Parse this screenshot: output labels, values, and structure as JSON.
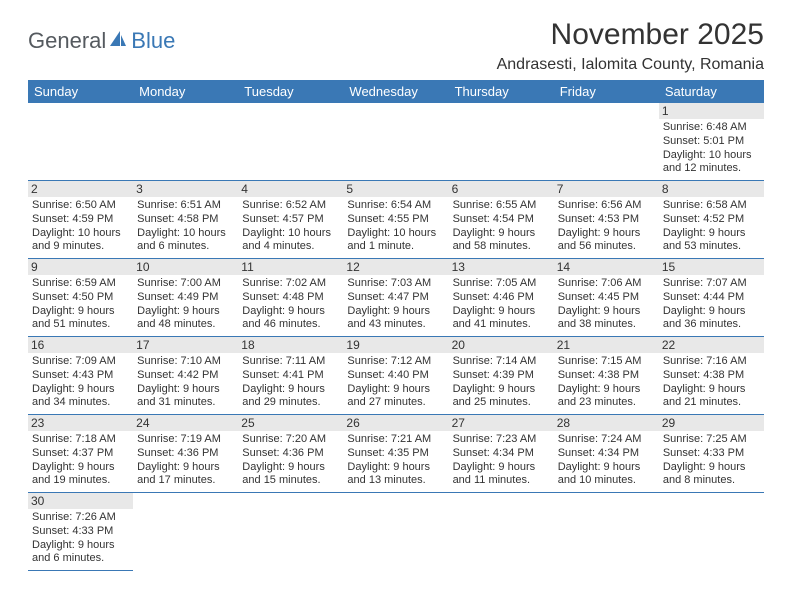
{
  "logo": {
    "general": "General",
    "blue": "Blue"
  },
  "title": "November 2025",
  "location": "Andrasesti, Ialomita County, Romania",
  "colors": {
    "header_bg": "#3a78b5",
    "header_text": "#ffffff",
    "text": "#333333",
    "daynum_bg": "#e8e8e8",
    "rule": "#3a78b5",
    "logo_gray": "#555a5f",
    "logo_blue": "#3a78b5",
    "background": "#ffffff"
  },
  "typography": {
    "title_fontsize": 30,
    "location_fontsize": 16,
    "weekday_fontsize": 13,
    "daynum_fontsize": 12,
    "body_fontsize": 11
  },
  "weekdays": [
    "Sunday",
    "Monday",
    "Tuesday",
    "Wednesday",
    "Thursday",
    "Friday",
    "Saturday"
  ],
  "weeks": [
    [
      null,
      null,
      null,
      null,
      null,
      null,
      {
        "n": "1",
        "sr": "Sunrise: 6:48 AM",
        "ss": "Sunset: 5:01 PM",
        "dl": "Daylight: 10 hours and 12 minutes."
      }
    ],
    [
      {
        "n": "2",
        "sr": "Sunrise: 6:50 AM",
        "ss": "Sunset: 4:59 PM",
        "dl": "Daylight: 10 hours and 9 minutes."
      },
      {
        "n": "3",
        "sr": "Sunrise: 6:51 AM",
        "ss": "Sunset: 4:58 PM",
        "dl": "Daylight: 10 hours and 6 minutes."
      },
      {
        "n": "4",
        "sr": "Sunrise: 6:52 AM",
        "ss": "Sunset: 4:57 PM",
        "dl": "Daylight: 10 hours and 4 minutes."
      },
      {
        "n": "5",
        "sr": "Sunrise: 6:54 AM",
        "ss": "Sunset: 4:55 PM",
        "dl": "Daylight: 10 hours and 1 minute."
      },
      {
        "n": "6",
        "sr": "Sunrise: 6:55 AM",
        "ss": "Sunset: 4:54 PM",
        "dl": "Daylight: 9 hours and 58 minutes."
      },
      {
        "n": "7",
        "sr": "Sunrise: 6:56 AM",
        "ss": "Sunset: 4:53 PM",
        "dl": "Daylight: 9 hours and 56 minutes."
      },
      {
        "n": "8",
        "sr": "Sunrise: 6:58 AM",
        "ss": "Sunset: 4:52 PM",
        "dl": "Daylight: 9 hours and 53 minutes."
      }
    ],
    [
      {
        "n": "9",
        "sr": "Sunrise: 6:59 AM",
        "ss": "Sunset: 4:50 PM",
        "dl": "Daylight: 9 hours and 51 minutes."
      },
      {
        "n": "10",
        "sr": "Sunrise: 7:00 AM",
        "ss": "Sunset: 4:49 PM",
        "dl": "Daylight: 9 hours and 48 minutes."
      },
      {
        "n": "11",
        "sr": "Sunrise: 7:02 AM",
        "ss": "Sunset: 4:48 PM",
        "dl": "Daylight: 9 hours and 46 minutes."
      },
      {
        "n": "12",
        "sr": "Sunrise: 7:03 AM",
        "ss": "Sunset: 4:47 PM",
        "dl": "Daylight: 9 hours and 43 minutes."
      },
      {
        "n": "13",
        "sr": "Sunrise: 7:05 AM",
        "ss": "Sunset: 4:46 PM",
        "dl": "Daylight: 9 hours and 41 minutes."
      },
      {
        "n": "14",
        "sr": "Sunrise: 7:06 AM",
        "ss": "Sunset: 4:45 PM",
        "dl": "Daylight: 9 hours and 38 minutes."
      },
      {
        "n": "15",
        "sr": "Sunrise: 7:07 AM",
        "ss": "Sunset: 4:44 PM",
        "dl": "Daylight: 9 hours and 36 minutes."
      }
    ],
    [
      {
        "n": "16",
        "sr": "Sunrise: 7:09 AM",
        "ss": "Sunset: 4:43 PM",
        "dl": "Daylight: 9 hours and 34 minutes."
      },
      {
        "n": "17",
        "sr": "Sunrise: 7:10 AM",
        "ss": "Sunset: 4:42 PM",
        "dl": "Daylight: 9 hours and 31 minutes."
      },
      {
        "n": "18",
        "sr": "Sunrise: 7:11 AM",
        "ss": "Sunset: 4:41 PM",
        "dl": "Daylight: 9 hours and 29 minutes."
      },
      {
        "n": "19",
        "sr": "Sunrise: 7:12 AM",
        "ss": "Sunset: 4:40 PM",
        "dl": "Daylight: 9 hours and 27 minutes."
      },
      {
        "n": "20",
        "sr": "Sunrise: 7:14 AM",
        "ss": "Sunset: 4:39 PM",
        "dl": "Daylight: 9 hours and 25 minutes."
      },
      {
        "n": "21",
        "sr": "Sunrise: 7:15 AM",
        "ss": "Sunset: 4:38 PM",
        "dl": "Daylight: 9 hours and 23 minutes."
      },
      {
        "n": "22",
        "sr": "Sunrise: 7:16 AM",
        "ss": "Sunset: 4:38 PM",
        "dl": "Daylight: 9 hours and 21 minutes."
      }
    ],
    [
      {
        "n": "23",
        "sr": "Sunrise: 7:18 AM",
        "ss": "Sunset: 4:37 PM",
        "dl": "Daylight: 9 hours and 19 minutes."
      },
      {
        "n": "24",
        "sr": "Sunrise: 7:19 AM",
        "ss": "Sunset: 4:36 PM",
        "dl": "Daylight: 9 hours and 17 minutes."
      },
      {
        "n": "25",
        "sr": "Sunrise: 7:20 AM",
        "ss": "Sunset: 4:36 PM",
        "dl": "Daylight: 9 hours and 15 minutes."
      },
      {
        "n": "26",
        "sr": "Sunrise: 7:21 AM",
        "ss": "Sunset: 4:35 PM",
        "dl": "Daylight: 9 hours and 13 minutes."
      },
      {
        "n": "27",
        "sr": "Sunrise: 7:23 AM",
        "ss": "Sunset: 4:34 PM",
        "dl": "Daylight: 9 hours and 11 minutes."
      },
      {
        "n": "28",
        "sr": "Sunrise: 7:24 AM",
        "ss": "Sunset: 4:34 PM",
        "dl": "Daylight: 9 hours and 10 minutes."
      },
      {
        "n": "29",
        "sr": "Sunrise: 7:25 AM",
        "ss": "Sunset: 4:33 PM",
        "dl": "Daylight: 9 hours and 8 minutes."
      }
    ],
    [
      {
        "n": "30",
        "sr": "Sunrise: 7:26 AM",
        "ss": "Sunset: 4:33 PM",
        "dl": "Daylight: 9 hours and 6 minutes."
      },
      null,
      null,
      null,
      null,
      null,
      null
    ]
  ]
}
